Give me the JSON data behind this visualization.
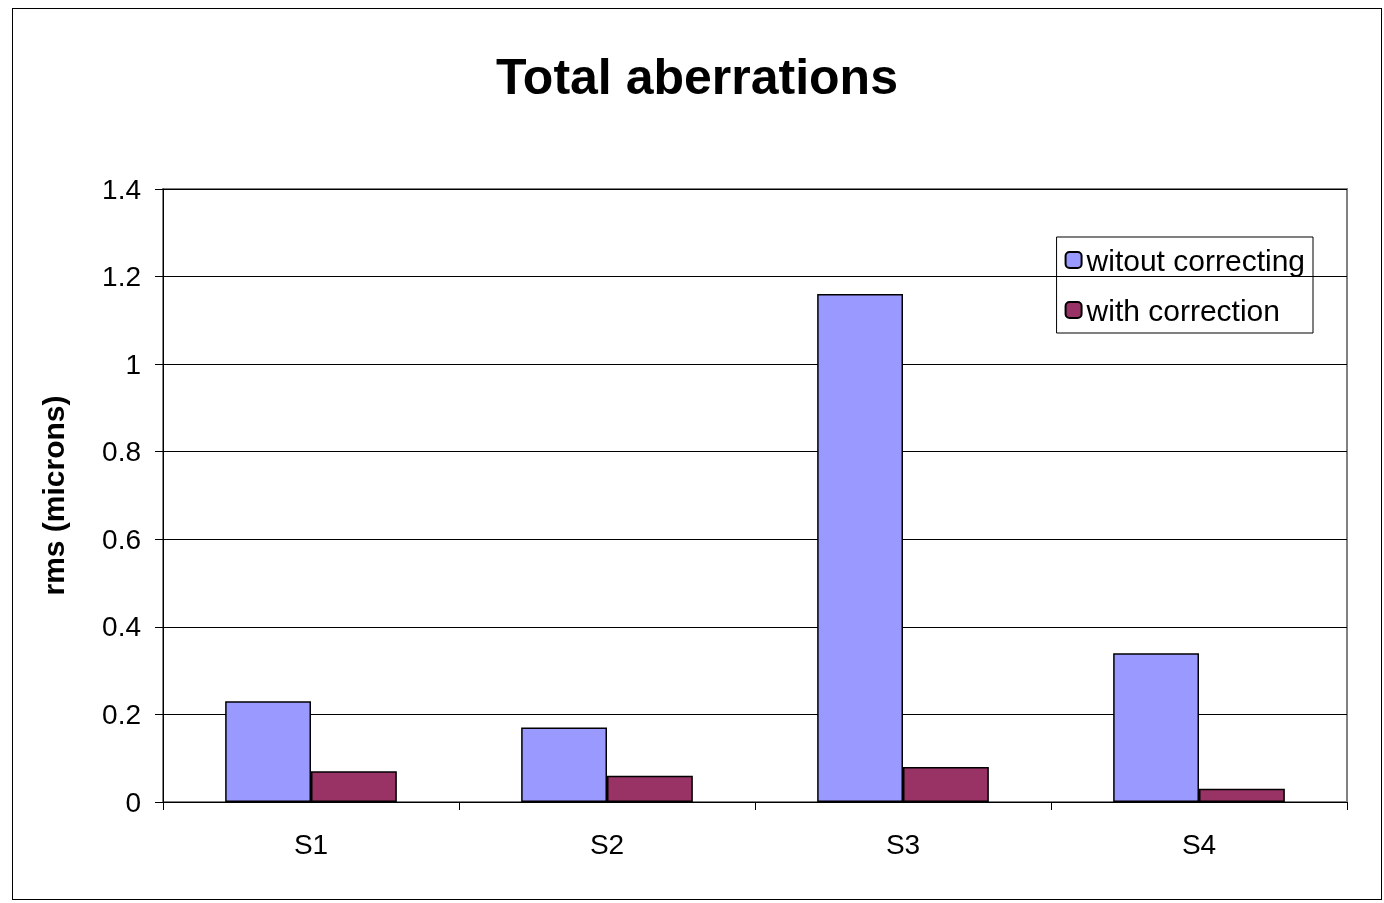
{
  "chart_data": {
    "type": "bar",
    "title": "Total aberrations",
    "ylabel": "rms (microns)",
    "categories": [
      "S1",
      "S2",
      "S3",
      "S4"
    ],
    "series": [
      {
        "name": "witout correcting",
        "color": "#9999ff",
        "values": [
          0.23,
          0.17,
          1.16,
          0.34
        ]
      },
      {
        "name": "with correction",
        "color": "#993366",
        "values": [
          0.07,
          0.06,
          0.08,
          0.03
        ]
      }
    ],
    "ylim": [
      0,
      1.4
    ],
    "yticks": [
      0,
      0.2,
      0.4,
      0.6,
      0.8,
      1,
      1.2,
      1.4
    ],
    "grid": "y",
    "legend": "top right"
  }
}
